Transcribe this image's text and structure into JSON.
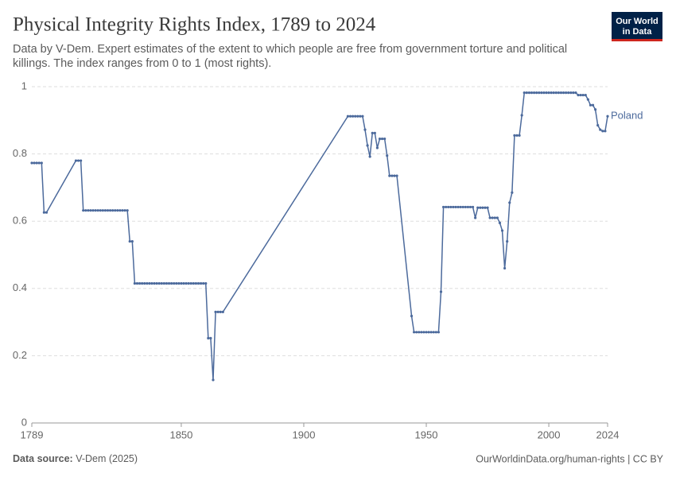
{
  "chart_data": {
    "type": "line",
    "title": "Physical Integrity Rights Index, 1789 to 2024",
    "subtitle_lines": [
      "Data by V-Dem. Expert estimates of the extent to which people are free from government torture and political",
      "killings. The index ranges from 0 to 1 (most rights)."
    ],
    "logo_lines": [
      "Our World",
      "in Data"
    ],
    "source_label": "Data source:",
    "source": "V-Dem (2025)",
    "footer_right": "OurWorldinData.org/human-rights | CC BY",
    "x": [
      1789,
      1790,
      1791,
      1792,
      1793,
      1794,
      1795,
      1807,
      1808,
      1809,
      1810,
      1811,
      1812,
      1813,
      1814,
      1815,
      1816,
      1817,
      1818,
      1819,
      1820,
      1821,
      1822,
      1823,
      1824,
      1825,
      1826,
      1827,
      1828,
      1829,
      1830,
      1831,
      1832,
      1833,
      1834,
      1835,
      1836,
      1837,
      1838,
      1839,
      1840,
      1841,
      1842,
      1843,
      1844,
      1845,
      1846,
      1847,
      1848,
      1849,
      1850,
      1851,
      1852,
      1853,
      1854,
      1855,
      1856,
      1857,
      1858,
      1859,
      1860,
      1861,
      1862,
      1863,
      1864,
      1865,
      1866,
      1867,
      1918,
      1919,
      1920,
      1921,
      1922,
      1923,
      1924,
      1925,
      1926,
      1927,
      1928,
      1929,
      1930,
      1931,
      1932,
      1933,
      1934,
      1935,
      1936,
      1937,
      1938,
      1944,
      1945,
      1946,
      1947,
      1948,
      1949,
      1950,
      1951,
      1952,
      1953,
      1954,
      1955,
      1956,
      1957,
      1958,
      1959,
      1960,
      1961,
      1962,
      1963,
      1964,
      1965,
      1966,
      1967,
      1968,
      1969,
      1970,
      1971,
      1972,
      1973,
      1974,
      1975,
      1976,
      1977,
      1978,
      1979,
      1980,
      1981,
      1982,
      1983,
      1984,
      1985,
      1986,
      1987,
      1988,
      1989,
      1990,
      1991,
      1992,
      1993,
      1994,
      1995,
      1996,
      1997,
      1998,
      1999,
      2000,
      2001,
      2002,
      2003,
      2004,
      2005,
      2006,
      2007,
      2008,
      2009,
      2010,
      2011,
      2012,
      2013,
      2014,
      2015,
      2016,
      2017,
      2018,
      2019,
      2020,
      2021,
      2022,
      2023,
      2024
    ],
    "series": [
      {
        "name": "Poland",
        "color": "#4c6a9c",
        "values": [
          0.773,
          0.773,
          0.773,
          0.773,
          0.773,
          0.626,
          0.626,
          0.78,
          0.78,
          0.78,
          0.632,
          0.632,
          0.632,
          0.632,
          0.632,
          0.632,
          0.632,
          0.632,
          0.632,
          0.632,
          0.632,
          0.632,
          0.632,
          0.632,
          0.632,
          0.632,
          0.632,
          0.632,
          0.632,
          0.54,
          0.54,
          0.415,
          0.415,
          0.415,
          0.415,
          0.415,
          0.415,
          0.415,
          0.415,
          0.415,
          0.415,
          0.415,
          0.415,
          0.415,
          0.415,
          0.415,
          0.415,
          0.415,
          0.415,
          0.415,
          0.415,
          0.415,
          0.415,
          0.415,
          0.415,
          0.415,
          0.415,
          0.415,
          0.415,
          0.415,
          0.415,
          0.252,
          0.252,
          0.128,
          0.33,
          0.33,
          0.33,
          0.33,
          0.912,
          0.912,
          0.912,
          0.912,
          0.912,
          0.912,
          0.912,
          0.872,
          0.825,
          0.792,
          0.862,
          0.862,
          0.818,
          0.845,
          0.845,
          0.845,
          0.795,
          0.735,
          0.735,
          0.735,
          0.735,
          0.318,
          0.27,
          0.27,
          0.27,
          0.27,
          0.27,
          0.27,
          0.27,
          0.27,
          0.27,
          0.27,
          0.27,
          0.39,
          0.642,
          0.642,
          0.642,
          0.642,
          0.642,
          0.642,
          0.642,
          0.642,
          0.642,
          0.642,
          0.642,
          0.642,
          0.642,
          0.61,
          0.64,
          0.64,
          0.64,
          0.64,
          0.64,
          0.61,
          0.61,
          0.61,
          0.61,
          0.595,
          0.572,
          0.46,
          0.54,
          0.655,
          0.685,
          0.855,
          0.855,
          0.855,
          0.915,
          0.982,
          0.982,
          0.982,
          0.982,
          0.982,
          0.982,
          0.982,
          0.982,
          0.982,
          0.982,
          0.982,
          0.982,
          0.982,
          0.982,
          0.982,
          0.982,
          0.982,
          0.982,
          0.982,
          0.982,
          0.982,
          0.982,
          0.975,
          0.975,
          0.975,
          0.975,
          0.962,
          0.945,
          0.945,
          0.932,
          0.885,
          0.872,
          0.868,
          0.868,
          0.912
        ]
      }
    ],
    "xlim": [
      1789,
      2024
    ],
    "xticks": [
      1789,
      1850,
      1900,
      1950,
      2000,
      2024
    ],
    "ylim": [
      0,
      1
    ],
    "yticks": [
      0,
      0.2,
      0.4,
      0.6,
      0.8,
      1
    ],
    "grid": true
  }
}
